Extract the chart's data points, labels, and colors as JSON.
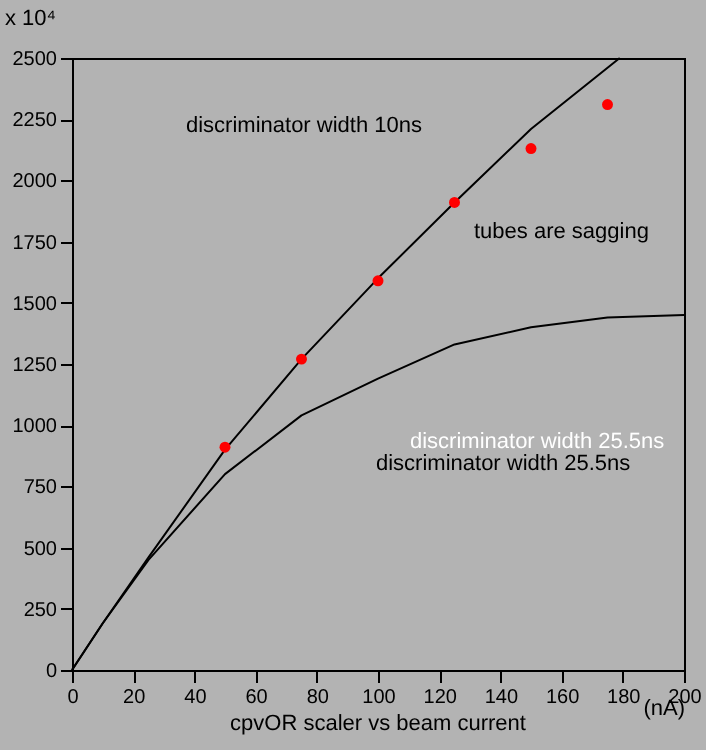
{
  "chart_data": {
    "type": "line",
    "title": "cpvOR scaler vs beam current",
    "xlabel": "(nA)",
    "ylabel": "x 10⁴",
    "xlim": [
      0,
      200
    ],
    "ylim": [
      0,
      2500
    ],
    "xticks": [
      0,
      20,
      40,
      60,
      80,
      100,
      120,
      140,
      160,
      180,
      200
    ],
    "yticks": [
      0,
      250,
      500,
      750,
      1000,
      1250,
      1500,
      1750,
      2000,
      2250,
      2500
    ],
    "grid": false,
    "series": [
      {
        "type": "line",
        "color": "#000000",
        "x": [
          0,
          10,
          25,
          50,
          75,
          100,
          125,
          150,
          179
        ],
        "values": [
          0,
          190,
          460,
          900,
          1270,
          1600,
          1910,
          2210,
          2500
        ]
      },
      {
        "type": "line",
        "color": "#000000",
        "x": [
          0,
          10,
          25,
          50,
          75,
          100,
          125,
          150,
          175,
          200
        ],
        "values": [
          0,
          190,
          450,
          800,
          1040,
          1190,
          1330,
          1400,
          1440,
          1450
        ]
      },
      {
        "type": "scatter",
        "color": "#ff0000",
        "marker": "circle",
        "x": [
          50,
          75,
          100,
          125,
          150,
          175
        ],
        "values": [
          910,
          1270,
          1590,
          1910,
          2130,
          2310
        ]
      }
    ],
    "annotations": [
      "discriminator width 10ns",
      "tubes are sagging",
      "discriminator width 25.5ns",
      "discriminator width 25.5ns"
    ]
  }
}
